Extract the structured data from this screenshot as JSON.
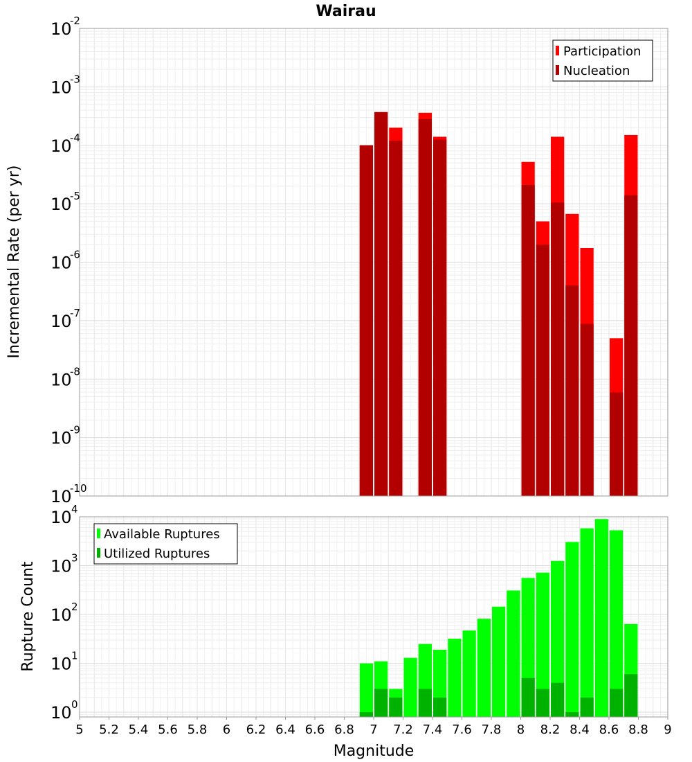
{
  "chart_data": [
    {
      "type": "bar",
      "title": "Wairau",
      "xlabel": "",
      "ylabel": "Incremental Rate (per yr)",
      "yscale": "log",
      "ylim": [
        1e-10,
        0.01
      ],
      "xlim": [
        5,
        9
      ],
      "grid": true,
      "legend_placement": "top-right",
      "yticks": [
        {
          "base": "10",
          "exp": "-10"
        },
        {
          "base": "10",
          "exp": "-9"
        },
        {
          "base": "10",
          "exp": "-8"
        },
        {
          "base": "10",
          "exp": "-7"
        },
        {
          "base": "10",
          "exp": "-6"
        },
        {
          "base": "10",
          "exp": "-5"
        },
        {
          "base": "10",
          "exp": "-4"
        },
        {
          "base": "10",
          "exp": "-3"
        },
        {
          "base": "10",
          "exp": "-2"
        }
      ],
      "x": [
        6.95,
        7.05,
        7.15,
        7.35,
        7.45,
        8.05,
        8.15,
        8.25,
        8.35,
        8.45,
        8.65,
        8.75
      ],
      "series": [
        {
          "name": "Participation",
          "color": "#ff0000",
          "values": [
            0.0001,
            0.00037,
            0.0002,
            0.00036,
            0.00014,
            5.2e-05,
            5e-06,
            0.00014,
            6.7e-06,
            1.75e-06,
            5e-08,
            0.00015
          ]
        },
        {
          "name": "Nucleation",
          "color": "#b20000",
          "values": [
            0.0001,
            0.00037,
            0.00012,
            0.00028,
            0.000125,
            2.1e-05,
            2e-06,
            1.05e-05,
            4e-07,
            8.8e-08,
            5.9e-09,
            1.4e-05
          ]
        }
      ]
    },
    {
      "type": "bar",
      "xlabel": "Magnitude",
      "ylabel": "Rupture Count",
      "yscale": "log",
      "ylim": [
        0.8,
        10000
      ],
      "xlim": [
        5,
        9
      ],
      "grid": true,
      "legend_placement": "top-left",
      "yticks": [
        {
          "value": 1,
          "base": "10",
          "exp": "0"
        },
        {
          "value": 10,
          "base": "10",
          "exp": "1"
        },
        {
          "value": 100,
          "base": "10",
          "exp": "2"
        },
        {
          "value": 1000,
          "base": "10",
          "exp": "3"
        },
        {
          "value": 10000,
          "base": "10",
          "exp": "4"
        }
      ],
      "xticks": [
        "5",
        "5.2",
        "5.4",
        "5.6",
        "5.8",
        "6",
        "6.2",
        "6.4",
        "6.6",
        "6.8",
        "7",
        "7.2",
        "7.4",
        "7.6",
        "7.8",
        "8",
        "8.2",
        "8.4",
        "8.6",
        "8.8",
        "9"
      ],
      "x": [
        6.95,
        7.05,
        7.15,
        7.25,
        7.35,
        7.45,
        7.55,
        7.65,
        7.75,
        7.85,
        7.95,
        8.05,
        8.15,
        8.25,
        8.35,
        8.45,
        8.55,
        8.65,
        8.75
      ],
      "series": [
        {
          "name": "Available Ruptures",
          "color": "#00ff00",
          "values": [
            10,
            11,
            3,
            13,
            25,
            19,
            32,
            47,
            82,
            145,
            310,
            560,
            720,
            1250,
            3050,
            5800,
            9000,
            5300,
            64
          ]
        },
        {
          "name": "Utilized Ruptures",
          "color": "#00b200",
          "values": [
            1,
            3,
            2,
            0,
            3,
            2,
            0,
            0,
            0,
            0,
            0,
            5,
            3,
            4,
            1,
            2,
            0,
            3,
            6
          ]
        }
      ]
    }
  ]
}
